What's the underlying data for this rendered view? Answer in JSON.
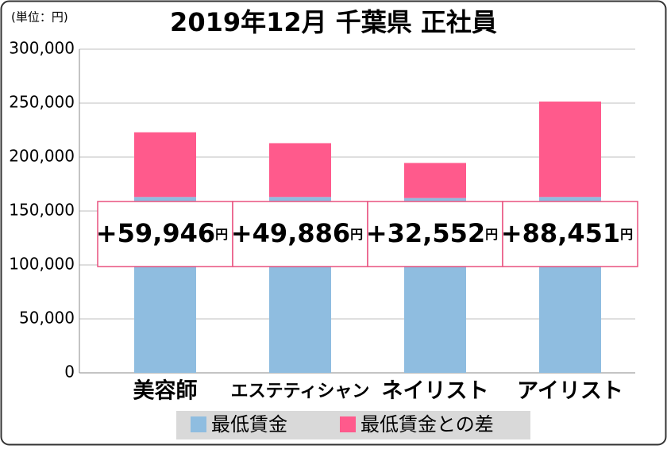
{
  "chart_data": {
    "type": "stacked_bar",
    "title": "2019年12月 千葉県 正社員",
    "unit_note": "(単位：円)",
    "categories": [
      "美容師",
      "エステティシャン",
      "ネイリスト",
      "アイリスト"
    ],
    "series": [
      {
        "name": "最低賃金",
        "color": "#8fbde0",
        "values": [
          163000,
          163000,
          162000,
          163000
        ]
      },
      {
        "name": "最低賃金との差",
        "color": "#ff5a8c",
        "values": [
          59946,
          49886,
          32552,
          88451
        ],
        "value_labels": [
          "+59,946",
          "+49,886",
          "+32,552",
          "+88,451"
        ],
        "value_label_unit": "円"
      }
    ],
    "ylim": [
      0,
      300000
    ],
    "yticks": [
      0,
      {
        "value": 50000,
        "label": "50,000"
      },
      {
        "value": 100000,
        "label": "100,000"
      },
      {
        "value": 150000,
        "label": "150,000"
      },
      {
        "value": 200000,
        "label": "200,000"
      },
      {
        "value": 250000,
        "label": "250,000"
      },
      {
        "value": 300000,
        "label": "300,000"
      }
    ],
    "grid": true
  }
}
